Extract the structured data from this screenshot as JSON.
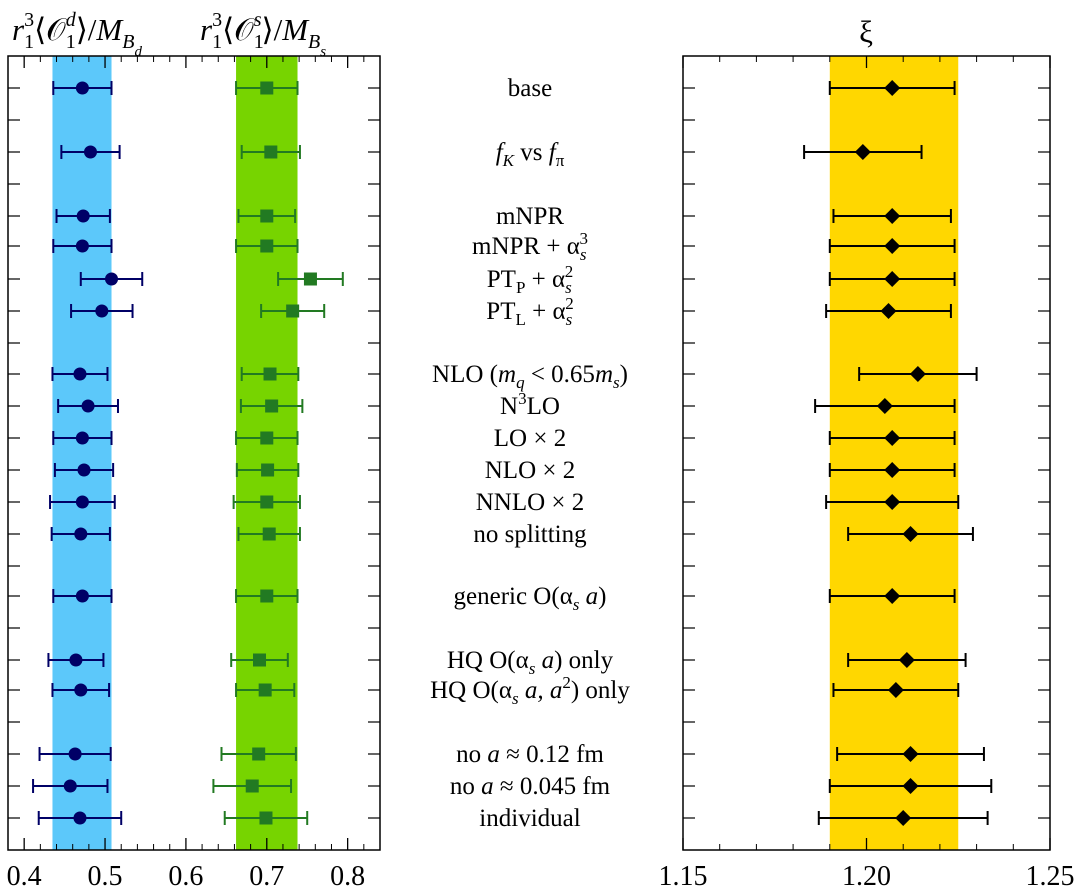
{
  "colors": {
    "band_d": "#5cc8fa",
    "band_s": "#77d400",
    "band_xi": "#ffd700",
    "marker_d": "#000066",
    "marker_s": "#227a22",
    "marker_xi": "#000000"
  },
  "chart_data": [
    {
      "type": "scatter",
      "panel": "left",
      "title_d": "r₁³⟨𝒪₁ᵈ⟩/M_Bd",
      "title_s": "r₁³⟨𝒪₁ˢ⟩/M_Bs",
      "xlim": [
        0.38,
        0.84
      ],
      "xticks": [
        "0.4",
        "0.5",
        "0.6",
        "0.7",
        "0.8"
      ],
      "band_d": [
        0.435,
        0.508
      ],
      "band_s": [
        0.662,
        0.738
      ],
      "series": [
        {
          "marker": "circle",
          "values": [
            {
              "label": "base",
              "x": 0.472,
              "err": 0.036
            },
            {
              "label": "fK vs fπ",
              "x": 0.482,
              "err": 0.036
            },
            {
              "label": "mNPR",
              "x": 0.473,
              "err": 0.033
            },
            {
              "label": "mNPR + αs3",
              "x": 0.472,
              "err": 0.036
            },
            {
              "label": "PTP + αs2",
              "x": 0.508,
              "err": 0.038
            },
            {
              "label": "PTL + αs2",
              "x": 0.496,
              "err": 0.038
            },
            {
              "label": "NLO",
              "x": 0.469,
              "err": 0.034
            },
            {
              "label": "N3LO",
              "x": 0.479,
              "err": 0.037
            },
            {
              "label": "LO × 2",
              "x": 0.472,
              "err": 0.036
            },
            {
              "label": "NLO × 2",
              "x": 0.474,
              "err": 0.036
            },
            {
              "label": "NNLO × 2",
              "x": 0.472,
              "err": 0.04
            },
            {
              "label": "no splitting",
              "x": 0.47,
              "err": 0.036
            },
            {
              "label": "generic",
              "x": 0.472,
              "err": 0.036
            },
            {
              "label": "HQ O(αs a) only",
              "x": 0.464,
              "err": 0.034
            },
            {
              "label": "HQ O(αs a, a2) only",
              "x": 0.47,
              "err": 0.035
            },
            {
              "label": "no a ≈ 0.12 fm",
              "x": 0.463,
              "err": 0.044
            },
            {
              "label": "no a ≈ 0.045 fm",
              "x": 0.457,
              "err": 0.046
            },
            {
              "label": "individual",
              "x": 0.469,
              "err": 0.051
            }
          ]
        },
        {
          "marker": "square",
          "values": [
            {
              "label": "base",
              "x": 0.7,
              "err": 0.038
            },
            {
              "label": "fK vs fπ",
              "x": 0.705,
              "err": 0.036
            },
            {
              "label": "mNPR",
              "x": 0.7,
              "err": 0.035
            },
            {
              "label": "mNPR + αs3",
              "x": 0.7,
              "err": 0.038
            },
            {
              "label": "PTP + αs2",
              "x": 0.754,
              "err": 0.04
            },
            {
              "label": "PTL + αs2",
              "x": 0.732,
              "err": 0.039
            },
            {
              "label": "NLO",
              "x": 0.704,
              "err": 0.035
            },
            {
              "label": "N3LO",
              "x": 0.706,
              "err": 0.038
            },
            {
              "label": "LO × 2",
              "x": 0.7,
              "err": 0.038
            },
            {
              "label": "NLO × 2",
              "x": 0.701,
              "err": 0.038
            },
            {
              "label": "NNLO × 2",
              "x": 0.7,
              "err": 0.041
            },
            {
              "label": "no splitting",
              "x": 0.703,
              "err": 0.038
            },
            {
              "label": "generic",
              "x": 0.7,
              "err": 0.038
            },
            {
              "label": "HQ O(αs a) only",
              "x": 0.691,
              "err": 0.035
            },
            {
              "label": "HQ O(αs a, a2) only",
              "x": 0.698,
              "err": 0.036
            },
            {
              "label": "no a ≈ 0.12 fm",
              "x": 0.69,
              "err": 0.046
            },
            {
              "label": "no a ≈ 0.045 fm",
              "x": 0.682,
              "err": 0.048
            },
            {
              "label": "individual",
              "x": 0.699,
              "err": 0.051
            }
          ]
        }
      ]
    },
    {
      "type": "scatter",
      "panel": "right",
      "title": "ξ",
      "xlim": [
        1.15,
        1.25
      ],
      "xticks": [
        "1.15",
        "1.20",
        "1.25"
      ],
      "band": [
        1.19,
        1.225
      ],
      "series": [
        {
          "marker": "diamond",
          "values": [
            {
              "label": "base",
              "x": 1.207,
              "err": 0.017
            },
            {
              "label": "fK vs fπ",
              "x": 1.199,
              "err": 0.016
            },
            {
              "label": "mNPR",
              "x": 1.207,
              "err": 0.016
            },
            {
              "label": "mNPR + αs3",
              "x": 1.207,
              "err": 0.017
            },
            {
              "label": "PTP + αs2",
              "x": 1.207,
              "err": 0.017
            },
            {
              "label": "PTL + αs2",
              "x": 1.206,
              "err": 0.017
            },
            {
              "label": "NLO",
              "x": 1.214,
              "err": 0.016
            },
            {
              "label": "N3LO",
              "x": 1.205,
              "err": 0.019
            },
            {
              "label": "LO × 2",
              "x": 1.207,
              "err": 0.017
            },
            {
              "label": "NLO × 2",
              "x": 1.207,
              "err": 0.017
            },
            {
              "label": "NNLO × 2",
              "x": 1.207,
              "err": 0.018
            },
            {
              "label": "no splitting",
              "x": 1.212,
              "err": 0.017
            },
            {
              "label": "generic",
              "x": 1.207,
              "err": 0.017
            },
            {
              "label": "HQ O(αs a) only",
              "x": 1.211,
              "err": 0.016
            },
            {
              "label": "HQ O(αs a, a2) only",
              "x": 1.208,
              "err": 0.017
            },
            {
              "label": "no a ≈ 0.12 fm",
              "x": 1.212,
              "err": 0.02
            },
            {
              "label": "no a ≈ 0.045 fm",
              "x": 1.212,
              "err": 0.022
            },
            {
              "label": "individual",
              "x": 1.21,
              "err": 0.023
            }
          ]
        }
      ]
    }
  ]
}
